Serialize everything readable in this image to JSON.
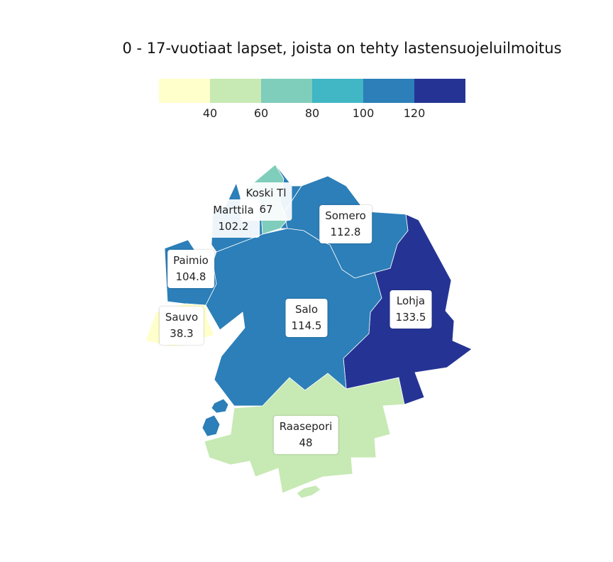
{
  "title": "0 - 17-vuotiaat lapset, joista on tehty lastensuojeluilmoitus",
  "legend": {
    "colors": [
      "#ffffcc",
      "#c7e9b4",
      "#7fcdbb",
      "#41b6c4",
      "#2c7fb8",
      "#253494"
    ],
    "ticks": [
      "40",
      "60",
      "80",
      "100",
      "120"
    ]
  },
  "regions": [
    {
      "name": "Koski Tl",
      "value": "67",
      "color": "#7fcdbb"
    },
    {
      "name": "Marttila",
      "value": "102.2",
      "color": "#2c7fb8"
    },
    {
      "name": "Somero",
      "value": "112.8",
      "color": "#2c7fb8"
    },
    {
      "name": "Paimio",
      "value": "104.8",
      "color": "#2c7fb8"
    },
    {
      "name": "Salo",
      "value": "114.5",
      "color": "#2c7fb8"
    },
    {
      "name": "Lohja",
      "value": "133.5",
      "color": "#253494"
    },
    {
      "name": "Sauvo",
      "value": "38.3",
      "color": "#ffffcc"
    },
    {
      "name": "Raasepori",
      "value": "48",
      "color": "#c7e9b4"
    }
  ]
}
